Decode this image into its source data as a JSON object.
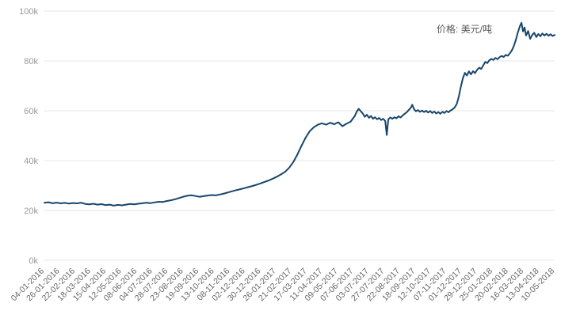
{
  "chart_data": {
    "type": "line",
    "title": "",
    "xlabel": "",
    "ylabel": "",
    "annotation": "价格: 美元/吨",
    "grid": true,
    "legend_position": "top-right",
    "ylim": [
      0,
      100000
    ],
    "y_ticks": [
      {
        "label": "0k",
        "value": 0
      },
      {
        "label": "20k",
        "value": 20000
      },
      {
        "label": "40k",
        "value": 40000
      },
      {
        "label": "60k",
        "value": 60000
      },
      {
        "label": "80k",
        "value": 80000
      },
      {
        "label": "100k",
        "value": 100000
      }
    ],
    "x_labels": [
      "04-01-2016",
      "26-01-2016",
      "22-02-2016",
      "18-03-2016",
      "15-04-2016",
      "12-05-2016",
      "08-06-2016",
      "04-07-2016",
      "28-07-2016",
      "23-08-2016",
      "19-09-2016",
      "13-10-2016",
      "08-11-2016",
      "02-12-2016",
      "30-12-2016",
      "26-01-2017",
      "21-02-2017",
      "17-03-2017",
      "11-04-2017",
      "09-05-2017",
      "07-06-2017",
      "03-07-2017",
      "27-07-2017",
      "22-08-2017",
      "18-09-2017",
      "12-10-2017",
      "07-11-2017",
      "01-12-2017",
      "29-12-2017",
      "25-01-2018",
      "20-02-2018",
      "16-03-2018",
      "13-04-2018",
      "10-05-2018"
    ],
    "colors": {
      "grid": "#e6e6e6",
      "x_label_color": "#666666",
      "y_label_color": "#999999",
      "annotation_text": "#595959",
      "background": "#ffffff"
    },
    "series": [
      {
        "name": "价格",
        "unit": "美元/吨",
        "color": "#17456b",
        "points_x_format": "fraction of x-axis width (0 = 04-01-2016, 1 = 10-05-2018)",
        "points": [
          [
            0,
            23100
          ],
          [
            0.008,
            23300
          ],
          [
            0.016,
            22900
          ],
          [
            0.024,
            23150
          ],
          [
            0.032,
            22850
          ],
          [
            0.04,
            23050
          ],
          [
            0.048,
            22750
          ],
          [
            0.056,
            23000
          ],
          [
            0.064,
            22850
          ],
          [
            0.072,
            23100
          ],
          [
            0.08,
            22650
          ],
          [
            0.088,
            22450
          ],
          [
            0.096,
            22700
          ],
          [
            0.104,
            22350
          ],
          [
            0.112,
            22550
          ],
          [
            0.12,
            22150
          ],
          [
            0.128,
            22350
          ],
          [
            0.136,
            21950
          ],
          [
            0.144,
            22250
          ],
          [
            0.152,
            22050
          ],
          [
            0.16,
            22350
          ],
          [
            0.168,
            22600
          ],
          [
            0.176,
            22450
          ],
          [
            0.184,
            22700
          ],
          [
            0.192,
            22900
          ],
          [
            0.2,
            23100
          ],
          [
            0.208,
            22950
          ],
          [
            0.216,
            23250
          ],
          [
            0.224,
            23500
          ],
          [
            0.232,
            23400
          ],
          [
            0.24,
            23800
          ],
          [
            0.248,
            24100
          ],
          [
            0.256,
            24500
          ],
          [
            0.264,
            25000
          ],
          [
            0.272,
            25500
          ],
          [
            0.28,
            25900
          ],
          [
            0.288,
            26100
          ],
          [
            0.296,
            25800
          ],
          [
            0.304,
            25500
          ],
          [
            0.312,
            25750
          ],
          [
            0.32,
            26000
          ],
          [
            0.328,
            26200
          ],
          [
            0.336,
            26050
          ],
          [
            0.344,
            26400
          ],
          [
            0.352,
            26800
          ],
          [
            0.36,
            27250
          ],
          [
            0.368,
            27700
          ],
          [
            0.376,
            28150
          ],
          [
            0.384,
            28550
          ],
          [
            0.392,
            28950
          ],
          [
            0.4,
            29400
          ],
          [
            0.408,
            29850
          ],
          [
            0.416,
            30350
          ],
          [
            0.424,
            30900
          ],
          [
            0.432,
            31500
          ],
          [
            0.44,
            32100
          ],
          [
            0.448,
            32800
          ],
          [
            0.456,
            33600
          ],
          [
            0.464,
            34500
          ],
          [
            0.472,
            35600
          ],
          [
            0.48,
            37200
          ],
          [
            0.488,
            39500
          ],
          [
            0.496,
            42500
          ],
          [
            0.504,
            46000
          ],
          [
            0.512,
            49200
          ],
          [
            0.52,
            51800
          ],
          [
            0.528,
            53400
          ],
          [
            0.536,
            54400
          ],
          [
            0.544,
            55000
          ],
          [
            0.552,
            54400
          ],
          [
            0.56,
            55200
          ],
          [
            0.568,
            54600
          ],
          [
            0.576,
            55400
          ],
          [
            0.584,
            53800
          ],
          [
            0.592,
            54800
          ],
          [
            0.6,
            55600
          ],
          [
            0.608,
            57800
          ],
          [
            0.612,
            59600
          ],
          [
            0.616,
            60800
          ],
          [
            0.62,
            59800
          ],
          [
            0.624,
            58900
          ],
          [
            0.628,
            57600
          ],
          [
            0.632,
            58400
          ],
          [
            0.636,
            57200
          ],
          [
            0.64,
            57900
          ],
          [
            0.644,
            56800
          ],
          [
            0.648,
            57400
          ],
          [
            0.652,
            56600
          ],
          [
            0.656,
            57100
          ],
          [
            0.66,
            56300
          ],
          [
            0.664,
            56800
          ],
          [
            0.668,
            55900
          ],
          [
            0.671,
            50300
          ],
          [
            0.674,
            56600
          ],
          [
            0.678,
            57300
          ],
          [
            0.682,
            56800
          ],
          [
            0.686,
            57400
          ],
          [
            0.69,
            57000
          ],
          [
            0.694,
            57800
          ],
          [
            0.698,
            57300
          ],
          [
            0.702,
            58100
          ],
          [
            0.706,
            58800
          ],
          [
            0.71,
            59400
          ],
          [
            0.714,
            60300
          ],
          [
            0.718,
            61200
          ],
          [
            0.721,
            62400
          ],
          [
            0.724,
            60800
          ],
          [
            0.728,
            59800
          ],
          [
            0.732,
            60300
          ],
          [
            0.736,
            59600
          ],
          [
            0.74,
            60100
          ],
          [
            0.744,
            59500
          ],
          [
            0.748,
            60000
          ],
          [
            0.752,
            59300
          ],
          [
            0.756,
            59900
          ],
          [
            0.76,
            59100
          ],
          [
            0.764,
            59700
          ],
          [
            0.768,
            58900
          ],
          [
            0.772,
            59500
          ],
          [
            0.776,
            58800
          ],
          [
            0.78,
            59600
          ],
          [
            0.784,
            59100
          ],
          [
            0.788,
            59900
          ],
          [
            0.792,
            59400
          ],
          [
            0.796,
            60100
          ],
          [
            0.8,
            60600
          ],
          [
            0.804,
            61300
          ],
          [
            0.808,
            62700
          ],
          [
            0.812,
            65500
          ],
          [
            0.816,
            69500
          ],
          [
            0.82,
            73000
          ],
          [
            0.824,
            75200
          ],
          [
            0.828,
            74100
          ],
          [
            0.832,
            75800
          ],
          [
            0.836,
            74600
          ],
          [
            0.84,
            75900
          ],
          [
            0.844,
            75100
          ],
          [
            0.848,
            76400
          ],
          [
            0.852,
            77300
          ],
          [
            0.856,
            76800
          ],
          [
            0.86,
            78200
          ],
          [
            0.864,
            79600
          ],
          [
            0.868,
            79100
          ],
          [
            0.872,
            80300
          ],
          [
            0.876,
            80800
          ],
          [
            0.88,
            80400
          ],
          [
            0.884,
            81200
          ],
          [
            0.888,
            80700
          ],
          [
            0.892,
            81500
          ],
          [
            0.896,
            82000
          ],
          [
            0.9,
            81600
          ],
          [
            0.904,
            82400
          ],
          [
            0.908,
            82100
          ],
          [
            0.912,
            83000
          ],
          [
            0.916,
            84200
          ],
          [
            0.92,
            86000
          ],
          [
            0.924,
            88500
          ],
          [
            0.928,
            91500
          ],
          [
            0.932,
            94000
          ],
          [
            0.935,
            95300
          ],
          [
            0.938,
            91800
          ],
          [
            0.941,
            93400
          ],
          [
            0.944,
            90200
          ],
          [
            0.948,
            92000
          ],
          [
            0.952,
            88900
          ],
          [
            0.956,
            90400
          ],
          [
            0.96,
            91300
          ],
          [
            0.964,
            89600
          ],
          [
            0.968,
            90800
          ],
          [
            0.972,
            89900
          ],
          [
            0.976,
            91000
          ],
          [
            0.98,
            90200
          ],
          [
            0.984,
            90900
          ],
          [
            0.988,
            90100
          ],
          [
            0.992,
            90700
          ],
          [
            0.996,
            90000
          ],
          [
            1,
            90400
          ]
        ]
      }
    ]
  }
}
